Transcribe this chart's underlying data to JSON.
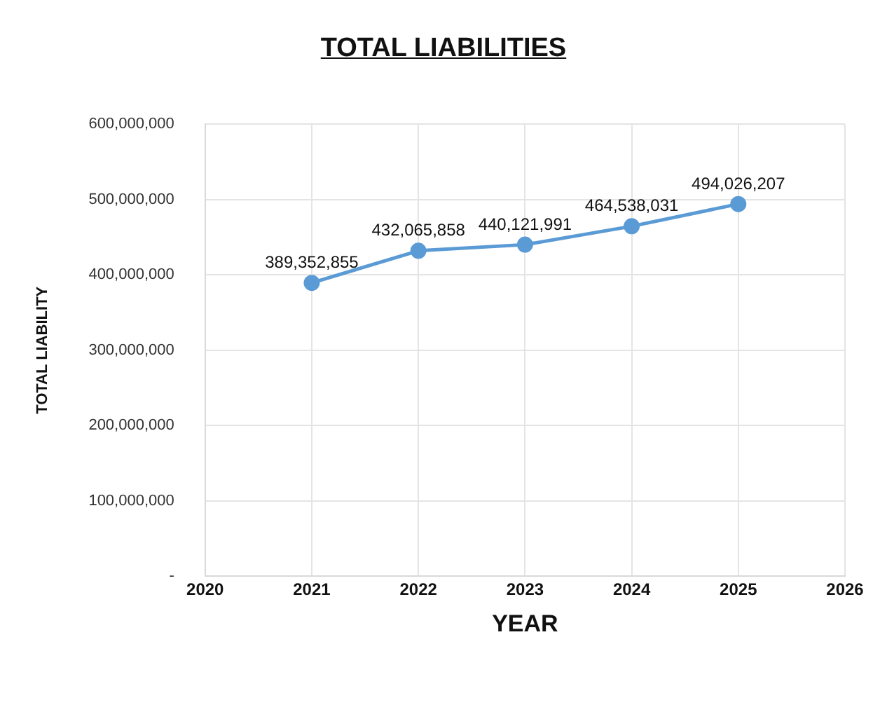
{
  "chart_data": {
    "type": "line",
    "title": "TOTAL LIABILITIES",
    "xlabel": "YEAR",
    "ylabel": "TOTAL LIABILITY",
    "x": [
      2021,
      2022,
      2023,
      2024,
      2025
    ],
    "series": [
      {
        "color": "#5b9bd5",
        "values": [
          389352855,
          432065858,
          440121991,
          464538031,
          494026207
        ],
        "value_labels": [
          "389,352,855",
          "432,065,858",
          "440,121,991",
          "464,538,031",
          "494,026,207"
        ]
      }
    ],
    "xlim": [
      2020,
      2026
    ],
    "xticks": [
      2020,
      2021,
      2022,
      2023,
      2024,
      2025,
      2026
    ],
    "ylim": [
      0,
      600000000
    ],
    "yticks": [
      {
        "value": 0,
        "label": "-"
      },
      {
        "value": 100000000,
        "label": "100,000,000"
      },
      {
        "value": 200000000,
        "label": "200,000,000"
      },
      {
        "value": 300000000,
        "label": "300,000,000"
      },
      {
        "value": 400000000,
        "label": "400,000,000"
      },
      {
        "value": 500000000,
        "label": "500,000,000"
      },
      {
        "value": 600000000,
        "label": "600,000,000"
      }
    ],
    "grid": true,
    "legend": false,
    "marker": "circle",
    "line_style": "solid"
  }
}
